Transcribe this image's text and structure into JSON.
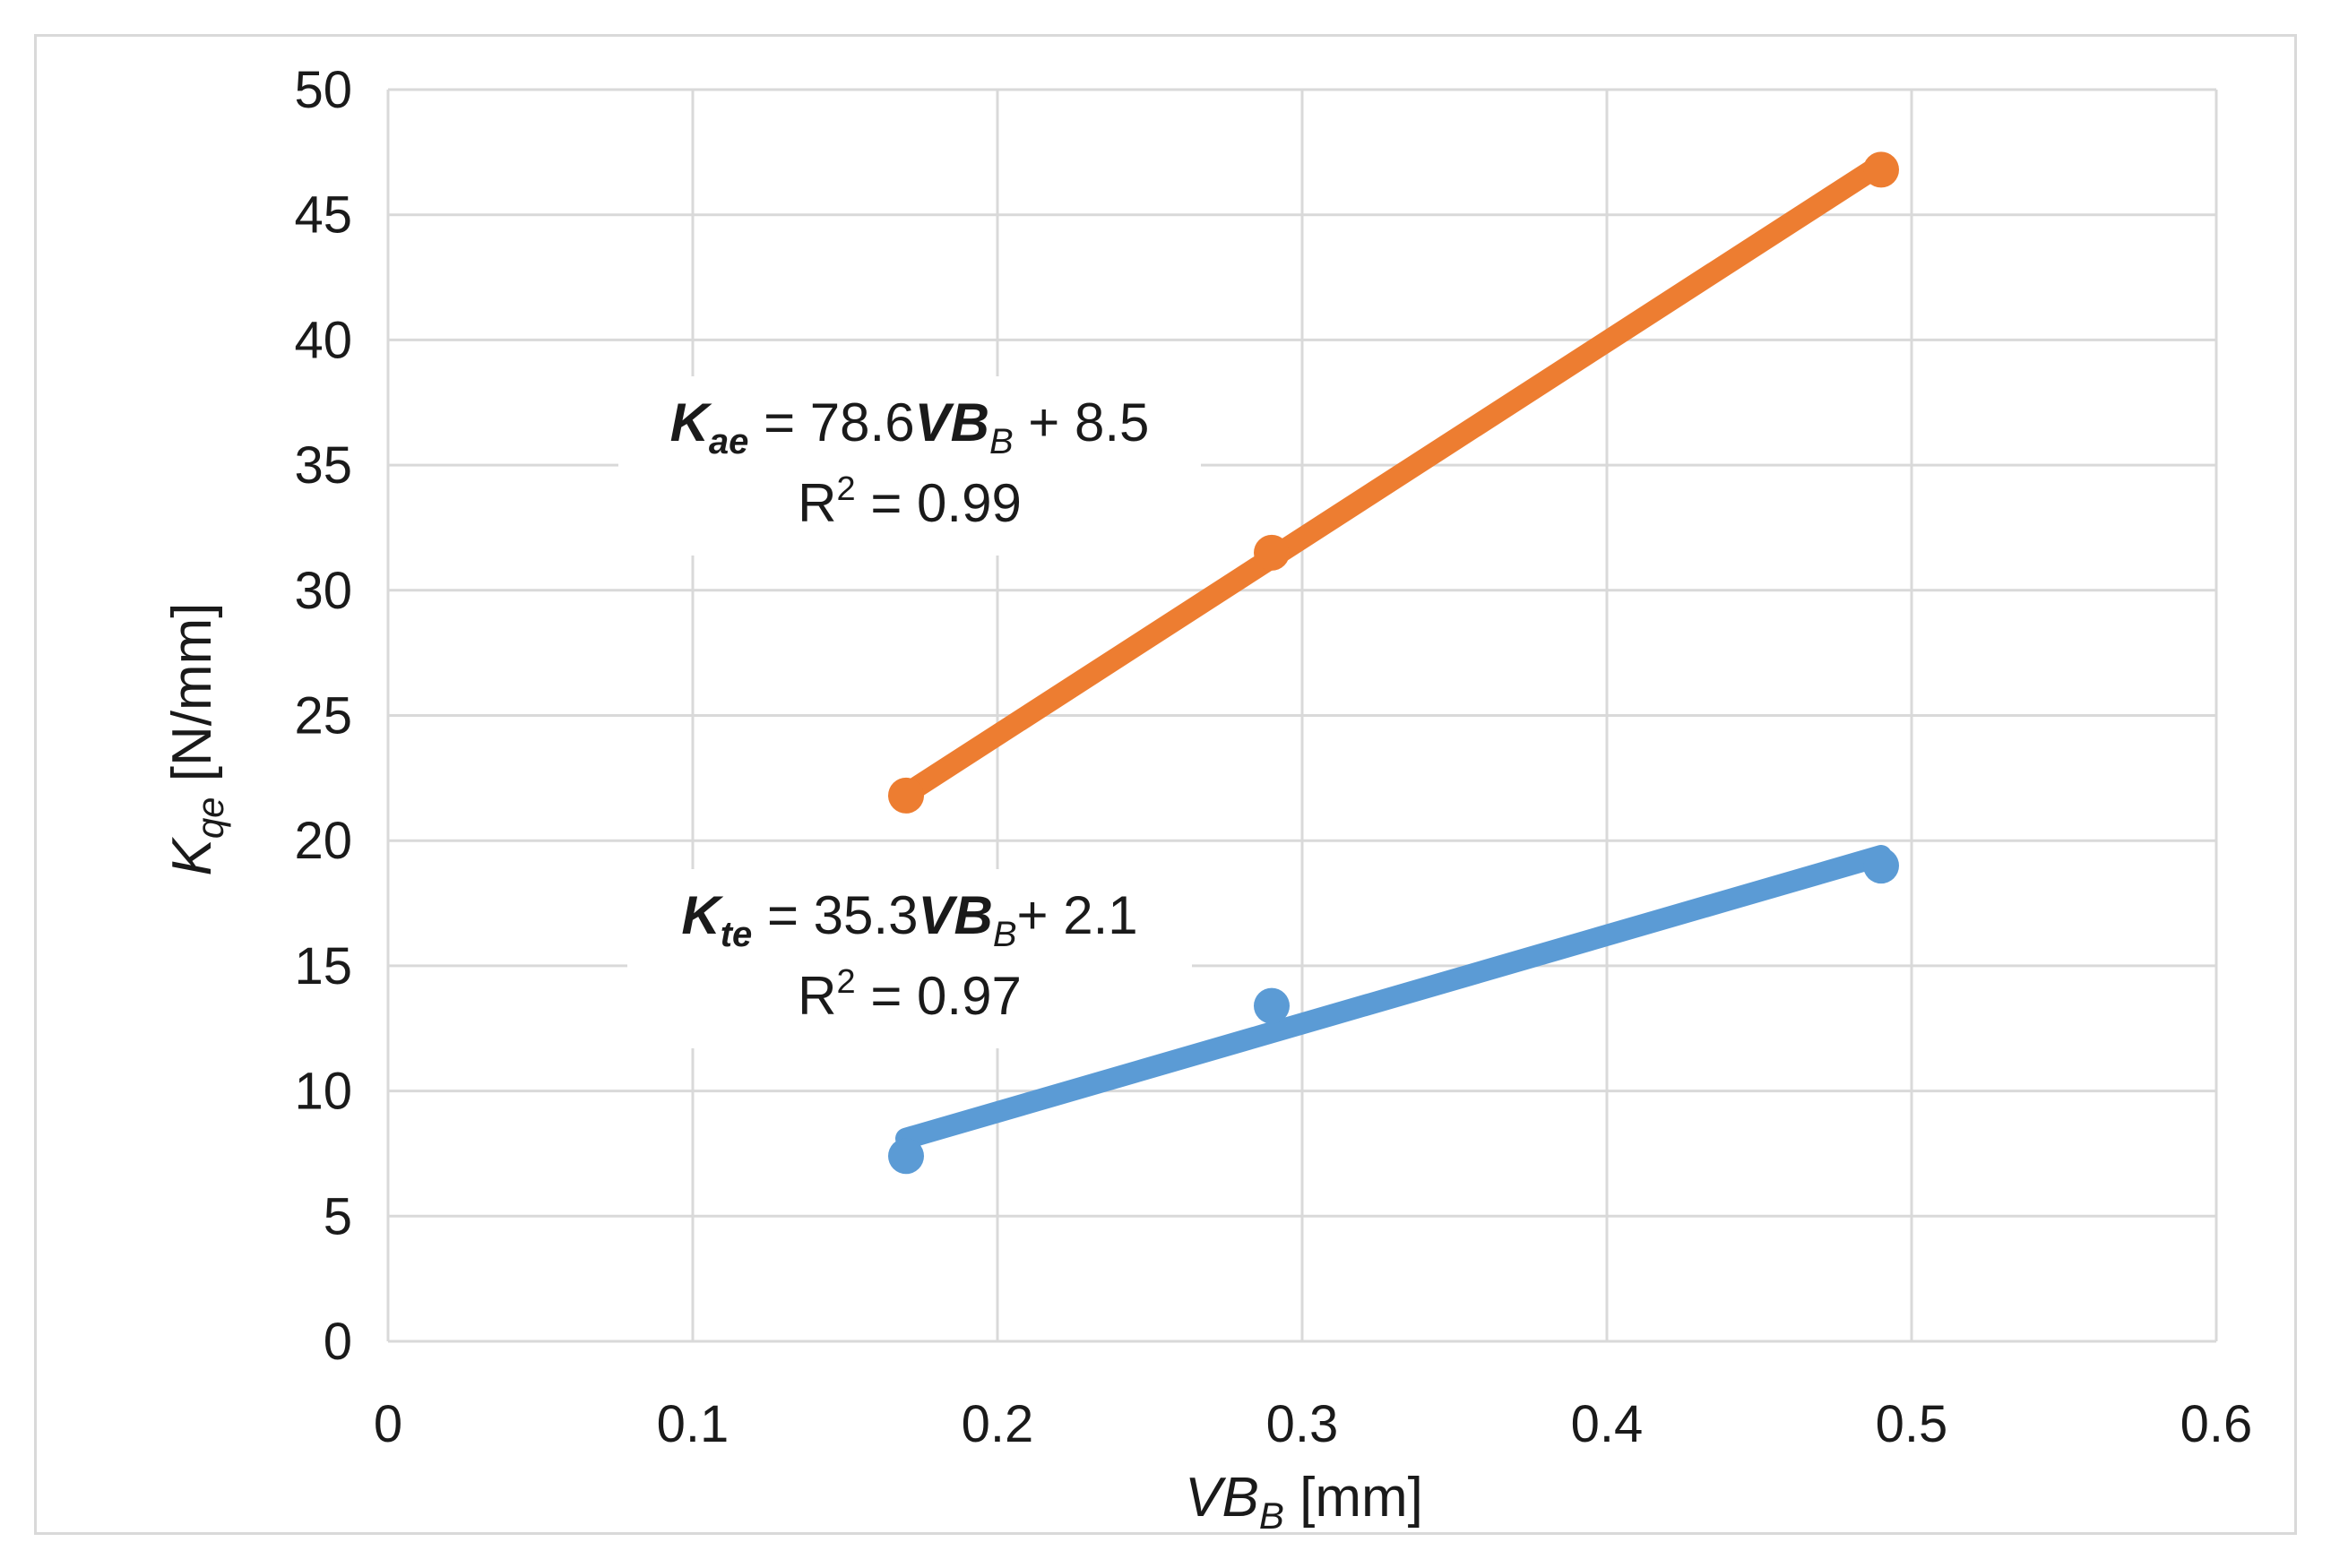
{
  "chart_data": {
    "type": "scatter",
    "title": "",
    "xlabel": {
      "main": "VB",
      "sub": "B",
      "unit": " [mm]"
    },
    "ylabel": {
      "main": "K",
      "sub": "qe",
      "unit": " [N/mm]"
    },
    "xlim": [
      0,
      0.6
    ],
    "ylim": [
      0,
      50
    ],
    "xticks": [
      0,
      0.1,
      0.2,
      0.3,
      0.4,
      0.5,
      0.6
    ],
    "xtick_labels": [
      "0",
      "0.1",
      "0.2",
      "0.3",
      "0.4",
      "0.5",
      "0.6"
    ],
    "yticks": [
      0,
      5,
      10,
      15,
      20,
      25,
      30,
      35,
      40,
      45,
      50
    ],
    "ytick_labels": [
      "0",
      "5",
      "10",
      "15",
      "20",
      "25",
      "30",
      "35",
      "40",
      "45",
      "50"
    ],
    "grid": true,
    "legend": "none",
    "series": [
      {
        "name": "Kae",
        "color": "#ed7d31",
        "x": [
          0.17,
          0.29,
          0.49
        ],
        "y": [
          21.8,
          31.5,
          46.8
        ],
        "trendline": {
          "slope": 78.6,
          "intercept": 8.5,
          "x_range": [
            0.17,
            0.49
          ]
        },
        "equation": {
          "k": "K",
          "sub": "ae",
          "eq": " = 78.6",
          "vb": "VB",
          "vbsub": "B",
          "tail": " + 8.5"
        },
        "r2": {
          "r": "R",
          "sup": "2",
          "val": " = 0.99"
        }
      },
      {
        "name": "Kte",
        "color": "#5b9bd5",
        "x": [
          0.17,
          0.29,
          0.49
        ],
        "y": [
          7.4,
          13.4,
          19.0
        ],
        "trendline": {
          "slope": 35.3,
          "intercept": 2.1,
          "x_range": [
            0.17,
            0.49
          ]
        },
        "equation": {
          "k": "K",
          "sub": "te",
          "eq": " = 35.3",
          "vb": "VB",
          "vbsub": "B",
          "tail": "+ 2.1"
        },
        "r2": {
          "r": "R",
          "sup": "2",
          "val": " = 0.97"
        }
      }
    ]
  }
}
